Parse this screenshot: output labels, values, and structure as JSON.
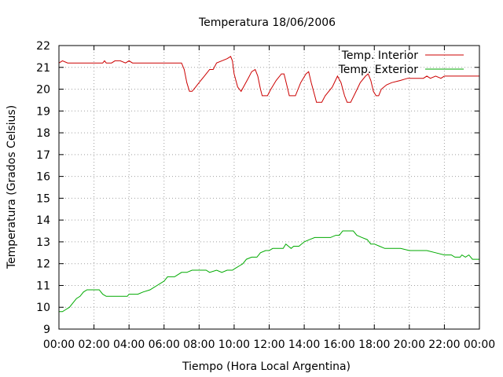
{
  "chart_data": {
    "type": "line",
    "title": "Temperatura 18/06/2006",
    "xlabel": "Tiempo (Hora Local Argentina)",
    "ylabel": "Temperatura (Grados Celsius)",
    "xlim": [
      0,
      24
    ],
    "ylim": [
      9,
      22
    ],
    "grid": true,
    "legend_position": "top-right",
    "x_ticks": [
      {
        "value": 0,
        "label": "00:00"
      },
      {
        "value": 2,
        "label": "02:00"
      },
      {
        "value": 4,
        "label": "04:00"
      },
      {
        "value": 6,
        "label": "06:00"
      },
      {
        "value": 8,
        "label": "08:00"
      },
      {
        "value": 10,
        "label": "10:00"
      },
      {
        "value": 12,
        "label": "12:00"
      },
      {
        "value": 14,
        "label": "14:00"
      },
      {
        "value": 16,
        "label": "16:00"
      },
      {
        "value": 18,
        "label": "18:00"
      },
      {
        "value": 20,
        "label": "20:00"
      },
      {
        "value": 22,
        "label": "22:00"
      },
      {
        "value": 24,
        "label": "00:00"
      }
    ],
    "y_ticks": [
      {
        "value": 9,
        "label": "9"
      },
      {
        "value": 10,
        "label": "10"
      },
      {
        "value": 11,
        "label": "11"
      },
      {
        "value": 12,
        "label": "12"
      },
      {
        "value": 13,
        "label": "13"
      },
      {
        "value": 14,
        "label": "14"
      },
      {
        "value": 15,
        "label": "15"
      },
      {
        "value": 16,
        "label": "16"
      },
      {
        "value": 17,
        "label": "17"
      },
      {
        "value": 18,
        "label": "18"
      },
      {
        "value": 19,
        "label": "19"
      },
      {
        "value": 20,
        "label": "20"
      },
      {
        "value": 21,
        "label": "21"
      },
      {
        "value": 22,
        "label": "22"
      }
    ],
    "series": [
      {
        "name": "Temp. Interior",
        "color": "#cc0000",
        "points": [
          [
            0,
            21.2
          ],
          [
            0.2,
            21.3
          ],
          [
            0.5,
            21.2
          ],
          [
            1,
            21.2
          ],
          [
            2,
            21.2
          ],
          [
            2.5,
            21.2
          ],
          [
            2.6,
            21.3
          ],
          [
            2.7,
            21.2
          ],
          [
            3,
            21.2
          ],
          [
            3.2,
            21.3
          ],
          [
            3.5,
            21.3
          ],
          [
            3.8,
            21.2
          ],
          [
            4,
            21.3
          ],
          [
            4.2,
            21.2
          ],
          [
            5,
            21.2
          ],
          [
            6,
            21.2
          ],
          [
            7,
            21.2
          ],
          [
            7.15,
            20.9
          ],
          [
            7.3,
            20.3
          ],
          [
            7.45,
            19.9
          ],
          [
            7.6,
            19.9
          ],
          [
            7.8,
            20.1
          ],
          [
            8.0,
            20.3
          ],
          [
            8.3,
            20.6
          ],
          [
            8.6,
            20.9
          ],
          [
            8.8,
            20.9
          ],
          [
            9.0,
            21.2
          ],
          [
            9.3,
            21.3
          ],
          [
            9.6,
            21.4
          ],
          [
            9.8,
            21.5
          ],
          [
            9.9,
            21.3
          ],
          [
            10.0,
            20.7
          ],
          [
            10.2,
            20.1
          ],
          [
            10.4,
            19.9
          ],
          [
            10.6,
            20.2
          ],
          [
            10.8,
            20.5
          ],
          [
            11.0,
            20.8
          ],
          [
            11.2,
            20.9
          ],
          [
            11.35,
            20.6
          ],
          [
            11.5,
            20.0
          ],
          [
            11.6,
            19.7
          ],
          [
            11.9,
            19.7
          ],
          [
            12.1,
            20.0
          ],
          [
            12.4,
            20.4
          ],
          [
            12.7,
            20.7
          ],
          [
            12.85,
            20.7
          ],
          [
            13.0,
            20.2
          ],
          [
            13.15,
            19.7
          ],
          [
            13.5,
            19.7
          ],
          [
            13.8,
            20.3
          ],
          [
            14.1,
            20.7
          ],
          [
            14.25,
            20.8
          ],
          [
            14.4,
            20.3
          ],
          [
            14.6,
            19.7
          ],
          [
            14.7,
            19.4
          ],
          [
            15.0,
            19.4
          ],
          [
            15.2,
            19.7
          ],
          [
            15.6,
            20.1
          ],
          [
            15.9,
            20.6
          ],
          [
            16.1,
            20.3
          ],
          [
            16.3,
            19.7
          ],
          [
            16.45,
            19.4
          ],
          [
            16.65,
            19.4
          ],
          [
            16.9,
            19.8
          ],
          [
            17.2,
            20.3
          ],
          [
            17.5,
            20.6
          ],
          [
            17.65,
            20.7
          ],
          [
            17.8,
            20.4
          ],
          [
            17.95,
            19.9
          ],
          [
            18.1,
            19.7
          ],
          [
            18.25,
            19.7
          ],
          [
            18.4,
            20.0
          ],
          [
            18.7,
            20.2
          ],
          [
            19.0,
            20.3
          ],
          [
            19.5,
            20.4
          ],
          [
            19.9,
            20.5
          ],
          [
            20.3,
            20.5
          ],
          [
            20.8,
            20.5
          ],
          [
            21.0,
            20.6
          ],
          [
            21.2,
            20.5
          ],
          [
            21.5,
            20.6
          ],
          [
            21.8,
            20.5
          ],
          [
            22.0,
            20.6
          ],
          [
            23.0,
            20.6
          ],
          [
            24.0,
            20.6
          ]
        ]
      },
      {
        "name": "Temp. Exterior",
        "color": "#00aa00",
        "points": [
          [
            0,
            9.8
          ],
          [
            0.2,
            9.8
          ],
          [
            0.4,
            9.9
          ],
          [
            0.6,
            10.0
          ],
          [
            0.8,
            10.2
          ],
          [
            1.0,
            10.4
          ],
          [
            1.2,
            10.5
          ],
          [
            1.4,
            10.7
          ],
          [
            1.6,
            10.8
          ],
          [
            2.0,
            10.8
          ],
          [
            2.3,
            10.8
          ],
          [
            2.5,
            10.6
          ],
          [
            2.7,
            10.5
          ],
          [
            3.0,
            10.5
          ],
          [
            3.5,
            10.5
          ],
          [
            3.9,
            10.5
          ],
          [
            4.0,
            10.6
          ],
          [
            4.5,
            10.6
          ],
          [
            4.8,
            10.7
          ],
          [
            5.2,
            10.8
          ],
          [
            5.4,
            10.9
          ],
          [
            5.6,
            11.0
          ],
          [
            5.8,
            11.1
          ],
          [
            6.0,
            11.2
          ],
          [
            6.2,
            11.4
          ],
          [
            6.6,
            11.4
          ],
          [
            6.8,
            11.5
          ],
          [
            7.0,
            11.6
          ],
          [
            7.3,
            11.6
          ],
          [
            7.6,
            11.7
          ],
          [
            8.0,
            11.7
          ],
          [
            8.4,
            11.7
          ],
          [
            8.6,
            11.6
          ],
          [
            9.0,
            11.7
          ],
          [
            9.3,
            11.6
          ],
          [
            9.6,
            11.7
          ],
          [
            9.9,
            11.7
          ],
          [
            10.1,
            11.8
          ],
          [
            10.3,
            11.9
          ],
          [
            10.5,
            12.0
          ],
          [
            10.7,
            12.2
          ],
          [
            11.0,
            12.3
          ],
          [
            11.3,
            12.3
          ],
          [
            11.5,
            12.5
          ],
          [
            11.8,
            12.6
          ],
          [
            12.0,
            12.6
          ],
          [
            12.2,
            12.7
          ],
          [
            12.5,
            12.7
          ],
          [
            12.8,
            12.7
          ],
          [
            12.95,
            12.9
          ],
          [
            13.1,
            12.8
          ],
          [
            13.25,
            12.7
          ],
          [
            13.4,
            12.8
          ],
          [
            13.7,
            12.8
          ],
          [
            14.0,
            13.0
          ],
          [
            14.3,
            13.1
          ],
          [
            14.6,
            13.2
          ],
          [
            15.0,
            13.2
          ],
          [
            15.5,
            13.2
          ],
          [
            15.8,
            13.3
          ],
          [
            16.0,
            13.3
          ],
          [
            16.2,
            13.5
          ],
          [
            16.5,
            13.5
          ],
          [
            16.8,
            13.5
          ],
          [
            17.0,
            13.3
          ],
          [
            17.3,
            13.2
          ],
          [
            17.6,
            13.1
          ],
          [
            17.8,
            12.9
          ],
          [
            18.0,
            12.9
          ],
          [
            18.3,
            12.8
          ],
          [
            18.6,
            12.7
          ],
          [
            19.0,
            12.7
          ],
          [
            19.5,
            12.7
          ],
          [
            20.0,
            12.6
          ],
          [
            20.5,
            12.6
          ],
          [
            21.0,
            12.6
          ],
          [
            21.5,
            12.5
          ],
          [
            22.0,
            12.4
          ],
          [
            22.4,
            12.4
          ],
          [
            22.6,
            12.3
          ],
          [
            22.9,
            12.3
          ],
          [
            23.0,
            12.4
          ],
          [
            23.2,
            12.3
          ],
          [
            23.4,
            12.4
          ],
          [
            23.6,
            12.2
          ],
          [
            24.0,
            12.2
          ]
        ]
      }
    ]
  }
}
